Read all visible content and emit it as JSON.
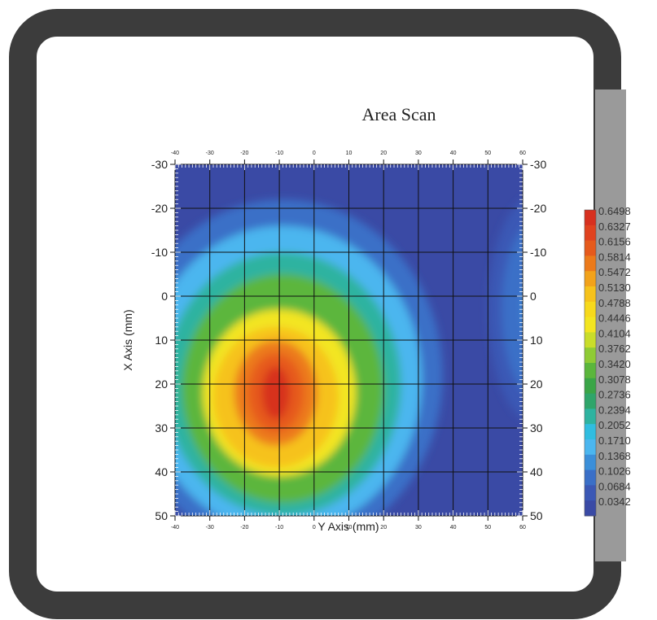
{
  "chart_data": {
    "type": "heatmap",
    "title": "Area Scan",
    "xlabel": "Y Axis (mm)",
    "ylabel": "X Axis (mm)",
    "x_ticks": [
      "-40",
      "-30",
      "-20",
      "-10",
      "0",
      "10",
      "20",
      "30",
      "40",
      "50",
      "60"
    ],
    "y_ticks": [
      "-30",
      "-20",
      "-10",
      "0",
      "10",
      "20",
      "30",
      "40",
      "50"
    ],
    "xlim": [
      -40,
      60
    ],
    "ylim": [
      -30,
      50
    ],
    "grid": true,
    "colorbar_labels": [
      "0.6498",
      "0.6327",
      "0.6156",
      "0.5814",
      "0.5472",
      "0.5130",
      "0.4788",
      "0.4446",
      "0.4104",
      "0.3762",
      "0.3420",
      "0.3078",
      "0.2736",
      "0.2394",
      "0.2052",
      "0.1710",
      "0.1368",
      "0.1026",
      "0.0684",
      "0.0342"
    ],
    "colorbar_colors": [
      "#d7301f",
      "#e0421f",
      "#e65a1c",
      "#ec7a1a",
      "#f2a21a",
      "#f6c21b",
      "#f7d91c",
      "#f3e520",
      "#c9dd2a",
      "#8fcb35",
      "#5bb63c",
      "#3aa547",
      "#2fa56a",
      "#2eb3a0",
      "#30bde0",
      "#4bb6ef",
      "#3b8fd9",
      "#3a6fc7",
      "#3b58b5",
      "#3a4aa5"
    ],
    "hotspots": [
      {
        "x": -10,
        "y": 22,
        "peak": 0.6498
      },
      {
        "x": 58,
        "y": 3,
        "peak": 0.22
      }
    ]
  }
}
